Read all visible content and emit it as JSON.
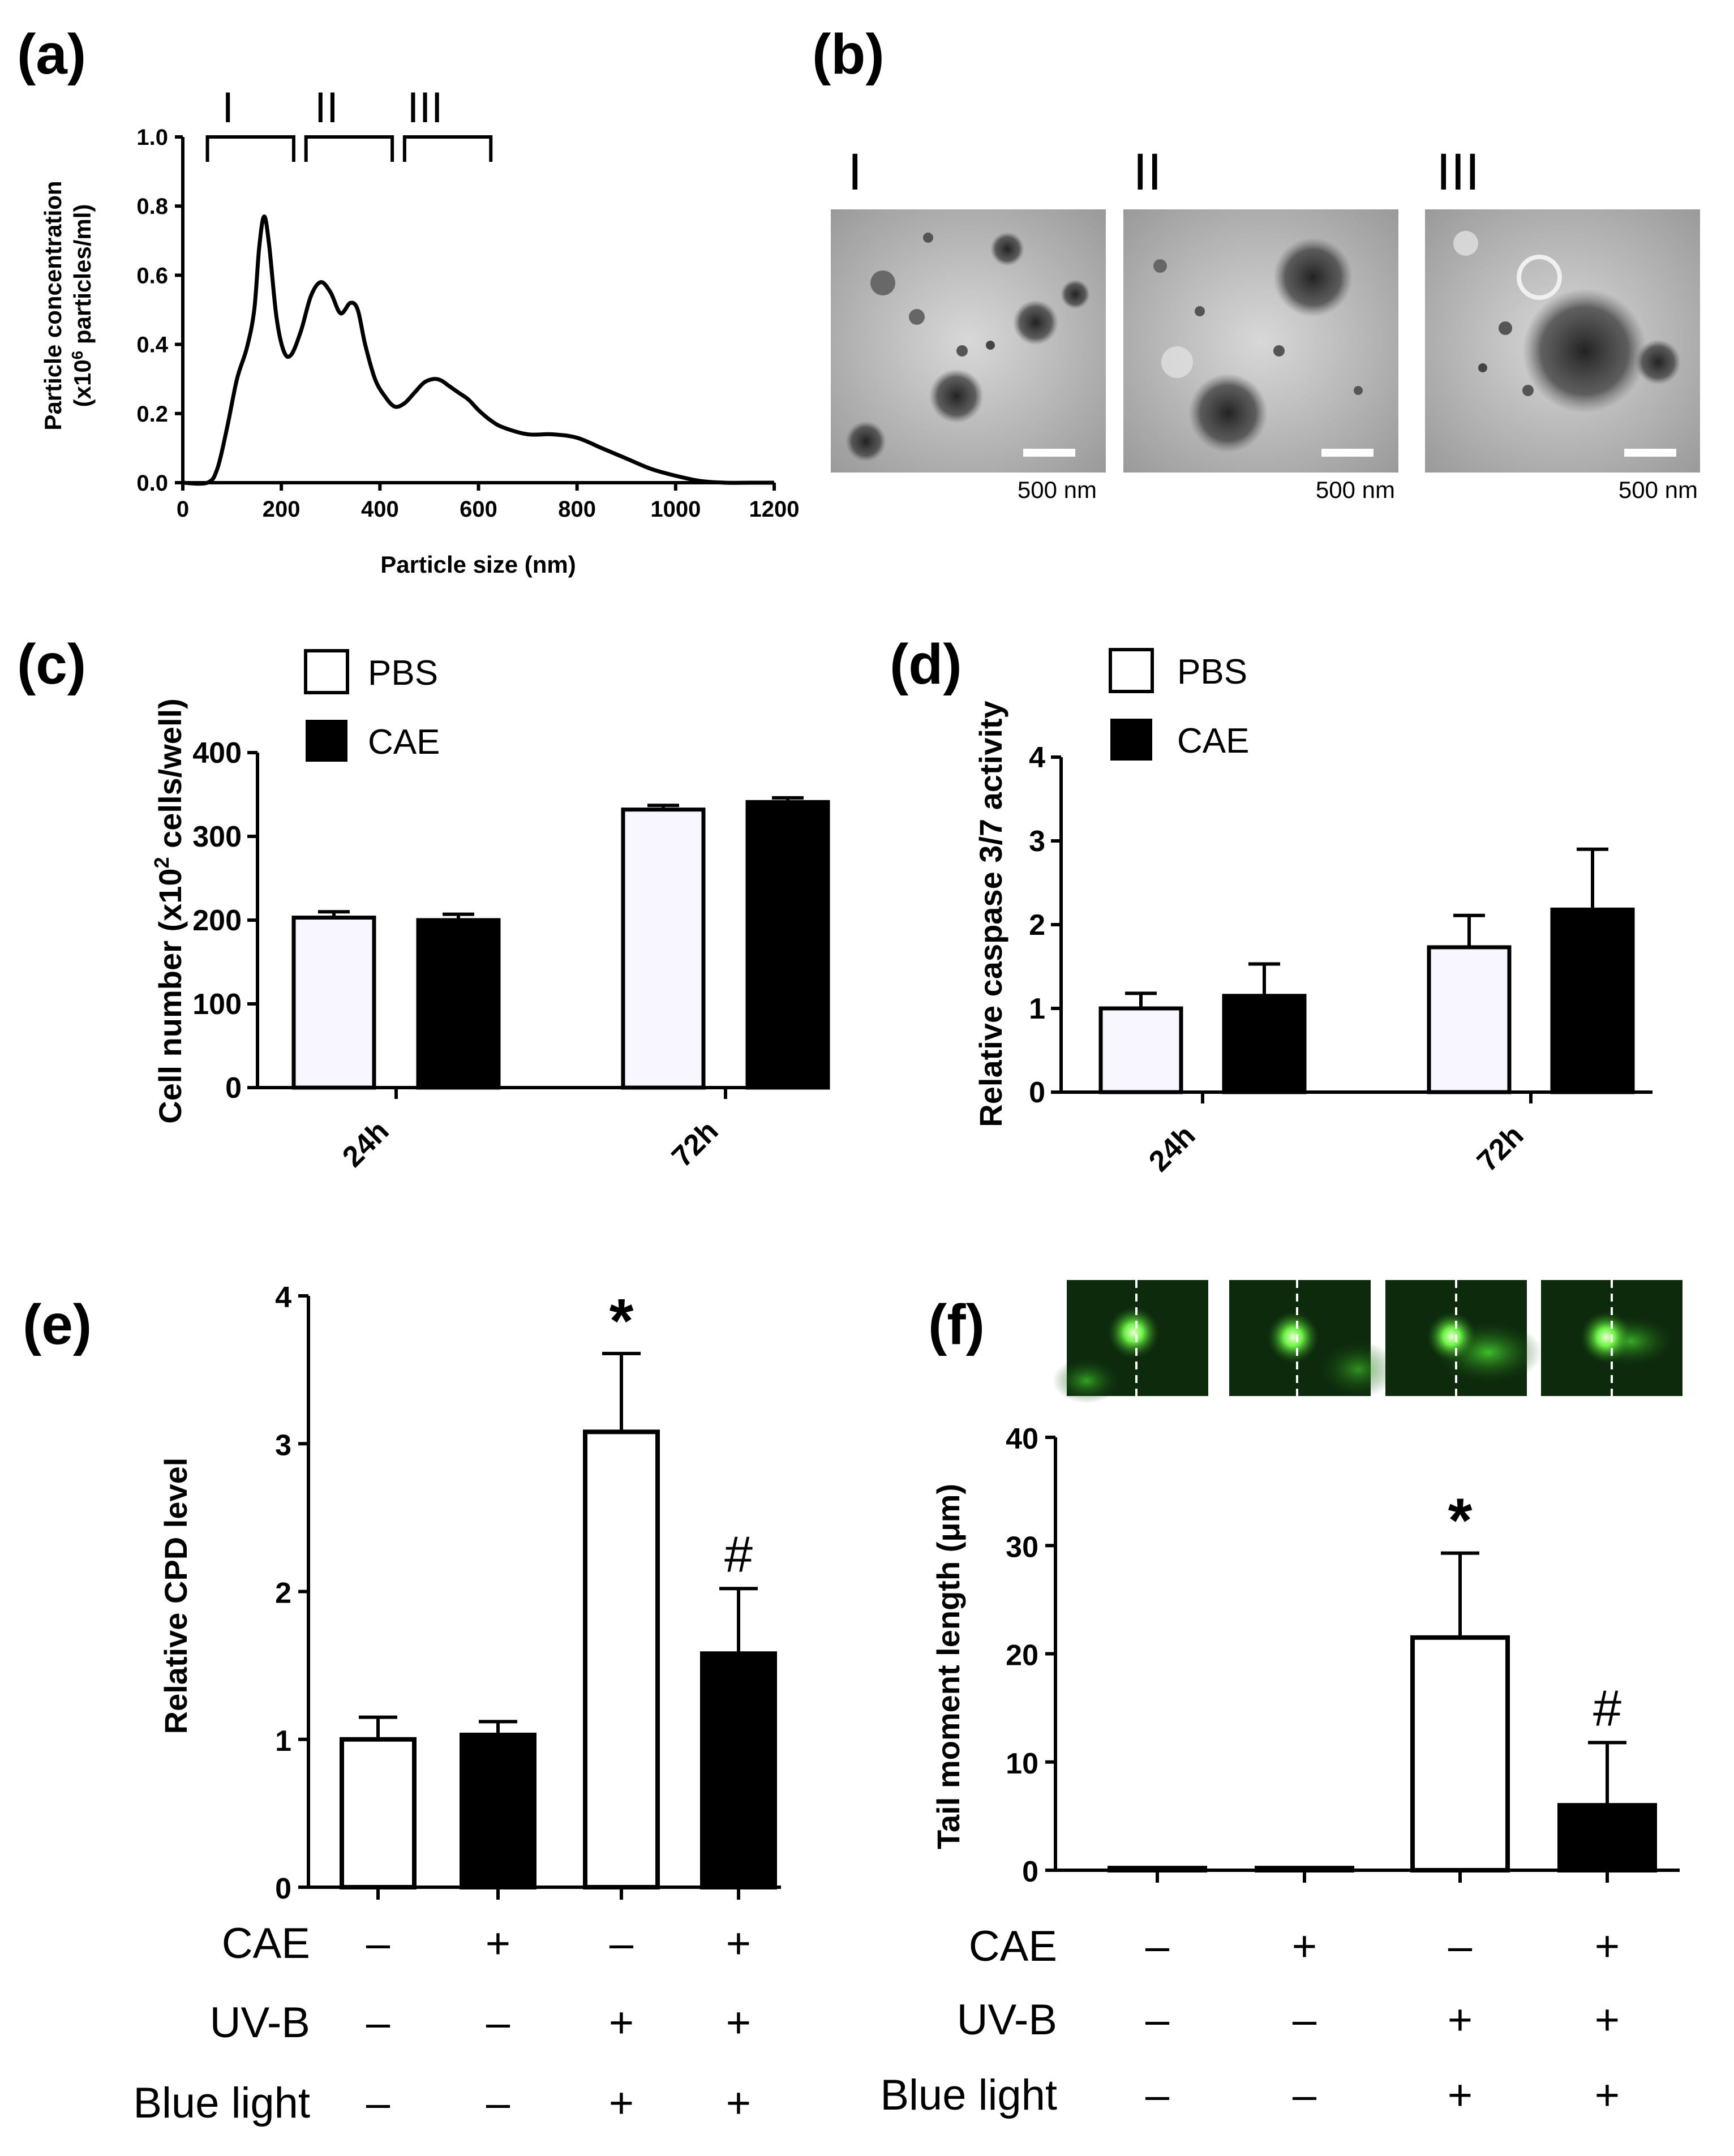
{
  "chart_data": [
    {
      "panel": "(a)",
      "type": "line",
      "xlabel": "Particle size (nm)",
      "ylabel_line1": "Particle concentration",
      "ylabel_line2": "(x10",
      "ylabel_sup": "6",
      "ylabel_line2_rest": " particles/ml)",
      "xlim": [
        0,
        1200
      ],
      "ylim": [
        0,
        1.0
      ],
      "xticks": [
        "0",
        "200",
        "400",
        "600",
        "800",
        "1000",
        "1200"
      ],
      "yticks": [
        "0.0",
        "0.2",
        "0.4",
        "0.6",
        "0.8",
        "1.0"
      ],
      "brackets": [
        {
          "label": "I",
          "from": 50,
          "to": 225
        },
        {
          "label": "II",
          "from": 250,
          "to": 425
        },
        {
          "label": "III",
          "from": 450,
          "to": 625
        }
      ],
      "x": [
        0,
        50,
        70,
        90,
        110,
        130,
        145,
        155,
        165,
        175,
        190,
        205,
        220,
        240,
        260,
        280,
        300,
        320,
        340,
        355,
        370,
        390,
        410,
        430,
        450,
        470,
        490,
        510,
        525,
        540,
        560,
        580,
        600,
        625,
        650,
        700,
        750,
        800,
        850,
        900,
        950,
        1000,
        1050,
        1100,
        1150,
        1200
      ],
      "y": [
        0,
        0.0,
        0.04,
        0.16,
        0.3,
        0.39,
        0.5,
        0.68,
        0.77,
        0.69,
        0.48,
        0.38,
        0.37,
        0.44,
        0.54,
        0.58,
        0.55,
        0.49,
        0.52,
        0.5,
        0.4,
        0.3,
        0.25,
        0.22,
        0.23,
        0.26,
        0.29,
        0.3,
        0.295,
        0.28,
        0.26,
        0.24,
        0.21,
        0.18,
        0.16,
        0.14,
        0.14,
        0.13,
        0.1,
        0.07,
        0.04,
        0.02,
        0.005,
        0.0,
        0.0,
        0.0
      ]
    },
    {
      "panel": "(b)",
      "type": "image-grid",
      "images": [
        {
          "label": "I",
          "scale_bar": "500 nm"
        },
        {
          "label": "II",
          "scale_bar": "500 nm"
        },
        {
          "label": "III",
          "scale_bar": "500 nm"
        }
      ]
    },
    {
      "panel": "(c)",
      "type": "bar",
      "ylabel_main": "Cell number (x10",
      "ylabel_sup": "2",
      "ylabel_rest": " cells/well)",
      "ylim": [
        0,
        400
      ],
      "yticks": [
        "0",
        "100",
        "200",
        "300",
        "400"
      ],
      "categories": [
        "24h",
        "72h"
      ],
      "legend": [
        "PBS",
        "CAE"
      ],
      "series": [
        {
          "name": "PBS",
          "values": [
            203,
            332
          ],
          "errors": [
            7,
            5
          ]
        },
        {
          "name": "CAE",
          "values": [
            200,
            341
          ],
          "errors": [
            7,
            5
          ]
        }
      ]
    },
    {
      "panel": "(d)",
      "type": "bar",
      "ylabel": "Relative caspase 3/7 activity",
      "ylim": [
        0,
        4
      ],
      "yticks": [
        "0",
        "1",
        "2",
        "3",
        "4"
      ],
      "categories": [
        "24h",
        "72h"
      ],
      "legend": [
        "PBS",
        "CAE"
      ],
      "series": [
        {
          "name": "PBS",
          "values": [
            1.0,
            1.73
          ],
          "errors": [
            0.18,
            0.38
          ]
        },
        {
          "name": "CAE",
          "values": [
            1.15,
            2.18
          ],
          "errors": [
            0.38,
            0.72
          ]
        }
      ]
    },
    {
      "panel": "(e)",
      "type": "bar",
      "ylabel": "Relative CPD level",
      "ylim": [
        0,
        4
      ],
      "yticks": [
        "0",
        "1",
        "2",
        "3",
        "4"
      ],
      "bars": [
        {
          "value": 1.0,
          "error": 0.15,
          "fill": "white",
          "mark": ""
        },
        {
          "value": 1.03,
          "error": 0.09,
          "fill": "black",
          "mark": ""
        },
        {
          "value": 3.08,
          "error": 0.53,
          "fill": "white",
          "mark": "*"
        },
        {
          "value": 1.58,
          "error": 0.44,
          "fill": "black",
          "mark": "#"
        }
      ],
      "conditions": [
        {
          "label": "CAE",
          "signs": [
            "–",
            "+",
            "–",
            "+"
          ]
        },
        {
          "label": "UV-B",
          "signs": [
            "–",
            "–",
            "+",
            "+"
          ]
        },
        {
          "label": "Blue light",
          "signs": [
            "–",
            "–",
            "+",
            "+"
          ]
        }
      ]
    },
    {
      "panel": "(f)",
      "type": "bar",
      "ylabel": "Tail moment length (μm)",
      "ylim": [
        0,
        40
      ],
      "yticks": [
        "0",
        "10",
        "20",
        "30",
        "40"
      ],
      "bars": [
        {
          "value": 0.2,
          "error": 0,
          "fill": "white",
          "mark": ""
        },
        {
          "value": 0.2,
          "error": 0,
          "fill": "white",
          "mark": ""
        },
        {
          "value": 21.5,
          "error": 7.8,
          "fill": "white",
          "mark": "*"
        },
        {
          "value": 6.0,
          "error": 5.8,
          "fill": "black",
          "mark": "#"
        }
      ],
      "conditions": [
        {
          "label": "CAE",
          "signs": [
            "–",
            "+",
            "–",
            "+"
          ]
        },
        {
          "label": "UV-B",
          "signs": [
            "–",
            "–",
            "+",
            "+"
          ]
        },
        {
          "label": "Blue light",
          "signs": [
            "–",
            "–",
            "+",
            "+"
          ]
        }
      ]
    }
  ],
  "colors": {
    "pbs_fill": "#f8f6fe",
    "cae_fill": "#000000",
    "tem_bg": "#bdbdbd",
    "comet_bg": "#0d2a0d",
    "comet_glow": "#7cff5a"
  }
}
